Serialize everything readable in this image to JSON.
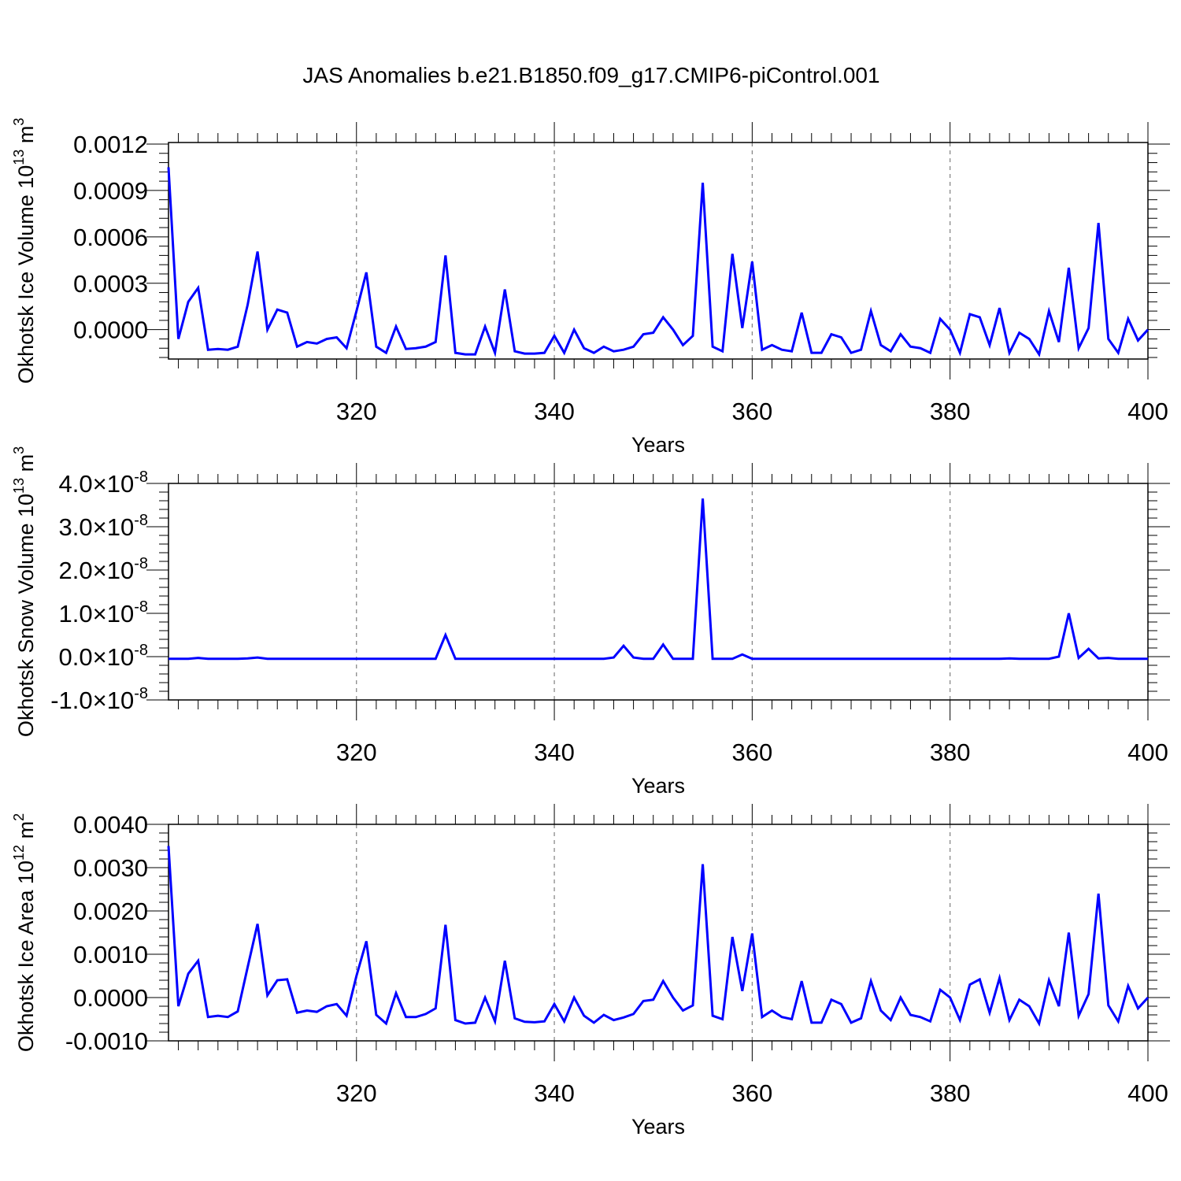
{
  "figure": {
    "title": "JAS Anomalies b.e21.B1850.f09_g17.CMIP6-piControl.001",
    "line_color": "#0000ff",
    "grid_color": "#808080"
  },
  "chart_data": [
    {
      "type": "line",
      "title": "",
      "xlabel": "Years",
      "ylabel": "Okhotsk Ice Volume 10",
      "ylabel_sup": "13",
      "ylabel_unit": " m",
      "ylabel_unit_sup": "3",
      "xlim": [
        301,
        400
      ],
      "ylim": [
        -0.00019,
        0.00121
      ],
      "xticks": [
        320,
        340,
        360,
        380,
        400
      ],
      "xtick_labels": [
        "320",
        "340",
        "360",
        "380",
        "400"
      ],
      "yticks": [
        0.0,
        0.0003,
        0.0006,
        0.0009,
        0.0012
      ],
      "ytick_labels": [
        "0.0000",
        "0.0003",
        "0.0006",
        "0.0009",
        "0.0012"
      ],
      "grid": "vertical dashed at major x ticks",
      "series": [
        {
          "x_start": 301,
          "values": [
            0.00105,
            -6e-05,
            0.00018,
            0.00027,
            -0.00013,
            -0.000125,
            -0.00013,
            -0.00011,
            0.00016,
            0.000505,
            0.0,
            0.00013,
            0.00011,
            -0.00011,
            -8e-05,
            -9e-05,
            -6e-05,
            -5e-05,
            -0.00012,
            0.00012,
            0.00037,
            -0.00011,
            -0.00015,
            2e-05,
            -0.000125,
            -0.00012,
            -0.00011,
            -8e-05,
            0.00048,
            -0.00015,
            -0.00016,
            -0.00016,
            2e-05,
            -0.00015,
            0.00026,
            -0.00014,
            -0.000155,
            -0.000155,
            -0.00015,
            -4e-05,
            -0.00015,
            0.0,
            -0.00012,
            -0.00015,
            -0.00011,
            -0.00014,
            -0.00013,
            -0.00011,
            -3e-05,
            -2e-05,
            8e-05,
            0.0,
            -0.0001,
            -4e-05,
            0.00095,
            -0.00011,
            -0.00014,
            0.00049,
            1e-05,
            0.00044,
            -0.00013,
            -0.0001,
            -0.00013,
            -0.00014,
            0.00011,
            -0.00015,
            -0.00015,
            -3e-05,
            -5e-05,
            -0.00015,
            -0.00013,
            0.00012,
            -0.0001,
            -0.00014,
            -3e-05,
            -0.00011,
            -0.00012,
            -0.00015,
            7e-05,
            0.0,
            -0.00015,
            0.0001,
            8e-05,
            -0.0001,
            0.00014,
            -0.00015,
            -2e-05,
            -6e-05,
            -0.00016,
            0.00012,
            -8e-05,
            0.0004,
            -0.00012,
            1e-05,
            0.00069,
            -6e-05,
            -0.00015,
            7e-05,
            -7e-05,
            0.0
          ]
        }
      ]
    },
    {
      "type": "line",
      "title": "",
      "xlabel": "Years",
      "ylabel": "Okhotsk Snow Volume 10",
      "ylabel_sup": "13",
      "ylabel_unit": " m",
      "ylabel_unit_sup": "3",
      "xlim": [
        301,
        400
      ],
      "ylim": [
        -1e-08,
        4e-08
      ],
      "xticks": [
        320,
        340,
        360,
        380,
        400
      ],
      "xtick_labels": [
        "320",
        "340",
        "360",
        "380",
        "400"
      ],
      "yticks": [
        -1e-08,
        0.0,
        1e-08,
        2e-08,
        3e-08,
        4e-08
      ],
      "ytick_labels": [
        {
          "mant": "-1.0",
          "times": "×",
          "base": "10",
          "exp": "-8"
        },
        {
          "mant": "0.0",
          "times": "×",
          "base": "10",
          "exp": "-8"
        },
        {
          "mant": "1.0",
          "times": "×",
          "base": "10",
          "exp": "-8"
        },
        {
          "mant": "2.0",
          "times": "×",
          "base": "10",
          "exp": "-8"
        },
        {
          "mant": "3.0",
          "times": "×",
          "base": "10",
          "exp": "-8"
        },
        {
          "mant": "4.0",
          "times": "×",
          "base": "10",
          "exp": "-8"
        }
      ],
      "grid": "vertical dashed at major x ticks",
      "series": [
        {
          "x_start": 301,
          "values": [
            -5e-10,
            -5e-10,
            -5e-10,
            -3e-10,
            -5e-10,
            -5e-10,
            -5e-10,
            -5e-10,
            -4e-10,
            -2e-10,
            -5e-10,
            -5e-10,
            -5e-10,
            -5e-10,
            -5e-10,
            -5e-10,
            -5e-10,
            -5e-10,
            -5e-10,
            -5e-10,
            -5e-10,
            -5e-10,
            -5e-10,
            -5e-10,
            -5e-10,
            -5e-10,
            -5e-10,
            -5e-10,
            5e-09,
            -5e-10,
            -5e-10,
            -5e-10,
            -5e-10,
            -5e-10,
            -5e-10,
            -5e-10,
            -5e-10,
            -5e-10,
            -5e-10,
            -5e-10,
            -5e-10,
            -5e-10,
            -5e-10,
            -5e-10,
            -5e-10,
            -2e-10,
            2.5e-09,
            -2e-10,
            -5e-10,
            -5e-10,
            2.8e-09,
            -5e-10,
            -5e-10,
            -5e-10,
            3.65e-08,
            -5e-10,
            -5e-10,
            -5e-10,
            5e-10,
            -5e-10,
            -5e-10,
            -5e-10,
            -5e-10,
            -5e-10,
            -5e-10,
            -5e-10,
            -5e-10,
            -5e-10,
            -5e-10,
            -5e-10,
            -5e-10,
            -5e-10,
            -5e-10,
            -5e-10,
            -5e-10,
            -5e-10,
            -5e-10,
            -5e-10,
            -5e-10,
            -5e-10,
            -5e-10,
            -5e-10,
            -5e-10,
            -5e-10,
            -5e-10,
            -4e-10,
            -5e-10,
            -5e-10,
            -5e-10,
            -5e-10,
            0.0,
            1e-08,
            -3e-10,
            1.8e-09,
            -4e-10,
            -3e-10,
            -5e-10,
            -5e-10,
            -5e-10,
            -5e-10
          ]
        }
      ]
    },
    {
      "type": "line",
      "title": "",
      "xlabel": "Years",
      "ylabel": "Okhotsk Ice Area 10",
      "ylabel_sup": "12",
      "ylabel_unit": " m",
      "ylabel_unit_sup": "2",
      "xlim": [
        301,
        400
      ],
      "ylim": [
        -0.001,
        0.004
      ],
      "xticks": [
        320,
        340,
        360,
        380,
        400
      ],
      "xtick_labels": [
        "320",
        "340",
        "360",
        "380",
        "400"
      ],
      "yticks": [
        -0.001,
        0.0,
        0.001,
        0.002,
        0.003,
        0.004
      ],
      "ytick_labels": [
        "-0.0010",
        "0.0000",
        "0.0010",
        "0.0020",
        "0.0030",
        "0.0040"
      ],
      "grid": "vertical dashed at major x ticks",
      "series": [
        {
          "x_start": 301,
          "values": [
            0.0035,
            -0.0002,
            0.00055,
            0.00085,
            -0.00045,
            -0.00042,
            -0.00045,
            -0.00032,
            0.0007,
            0.0017,
            5e-05,
            0.0004,
            0.00042,
            -0.00035,
            -0.0003,
            -0.00033,
            -0.0002,
            -0.00015,
            -0.00042,
            0.0005,
            0.0013,
            -0.0004,
            -0.0006,
            0.0001,
            -0.00045,
            -0.00045,
            -0.00038,
            -0.00025,
            0.00168,
            -0.00052,
            -0.0006,
            -0.00058,
            0.0,
            -0.00055,
            0.00085,
            -0.00048,
            -0.00056,
            -0.00057,
            -0.00055,
            -0.00015,
            -0.00055,
            0.0,
            -0.00042,
            -0.00058,
            -0.0004,
            -0.00052,
            -0.00046,
            -0.00038,
            -8e-05,
            -5e-05,
            0.00038,
            0.0,
            -0.0003,
            -0.00018,
            0.00308,
            -0.00042,
            -0.0005,
            0.0014,
            0.00015,
            0.00148,
            -0.00045,
            -0.0003,
            -0.00045,
            -0.0005,
            0.00038,
            -0.00058,
            -0.00058,
            -5e-05,
            -0.00015,
            -0.00058,
            -0.00048,
            0.00038,
            -0.0003,
            -0.00052,
            0.0,
            -0.0004,
            -0.00045,
            -0.00055,
            0.00018,
            0.0,
            -0.00052,
            0.0003,
            0.00042,
            -0.00035,
            0.00045,
            -0.00052,
            -5e-05,
            -0.0002,
            -0.0006,
            0.0004,
            -0.0002,
            0.0015,
            -0.00042,
            8e-05,
            0.0024,
            -0.00018,
            -0.00055,
            0.00027,
            -0.00025,
            0.0
          ]
        }
      ]
    }
  ]
}
